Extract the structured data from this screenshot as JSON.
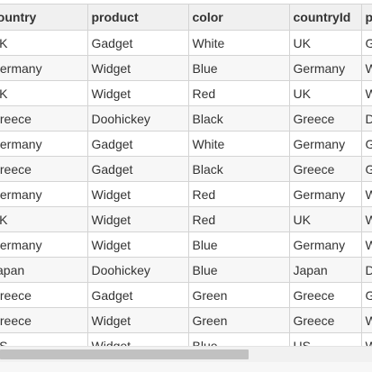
{
  "grid": {
    "columns": [
      "country",
      "product",
      "color",
      "countryId",
      "product"
    ],
    "rows": [
      [
        "UK",
        "Gadget",
        "White",
        "UK",
        "Gadget"
      ],
      [
        "Germany",
        "Widget",
        "Blue",
        "Germany",
        "Widget"
      ],
      [
        "UK",
        "Widget",
        "Red",
        "UK",
        "Widget"
      ],
      [
        "Greece",
        "Doohickey",
        "Black",
        "Greece",
        "Doohickey"
      ],
      [
        "Germany",
        "Gadget",
        "White",
        "Germany",
        "Gadget"
      ],
      [
        "Greece",
        "Gadget",
        "Black",
        "Greece",
        "Gadget"
      ],
      [
        "Germany",
        "Widget",
        "Red",
        "Germany",
        "Widget"
      ],
      [
        "UK",
        "Widget",
        "Red",
        "UK",
        "Widget"
      ],
      [
        "Germany",
        "Widget",
        "Blue",
        "Germany",
        "Widget"
      ],
      [
        "Japan",
        "Doohickey",
        "Blue",
        "Japan",
        "Doohickey"
      ],
      [
        "Greece",
        "Gadget",
        "Green",
        "Greece",
        "Gadget"
      ],
      [
        "Greece",
        "Widget",
        "Green",
        "Greece",
        "Widget"
      ],
      [
        "US",
        "Widget",
        "Blue",
        "US",
        "Widget"
      ]
    ]
  },
  "colors": {
    "header_bg": "#f0f0f0",
    "row_alt_bg": "#f7f7f7",
    "border": "#d4d4d4",
    "scrollbar_thumb": "#c1c1c1"
  }
}
